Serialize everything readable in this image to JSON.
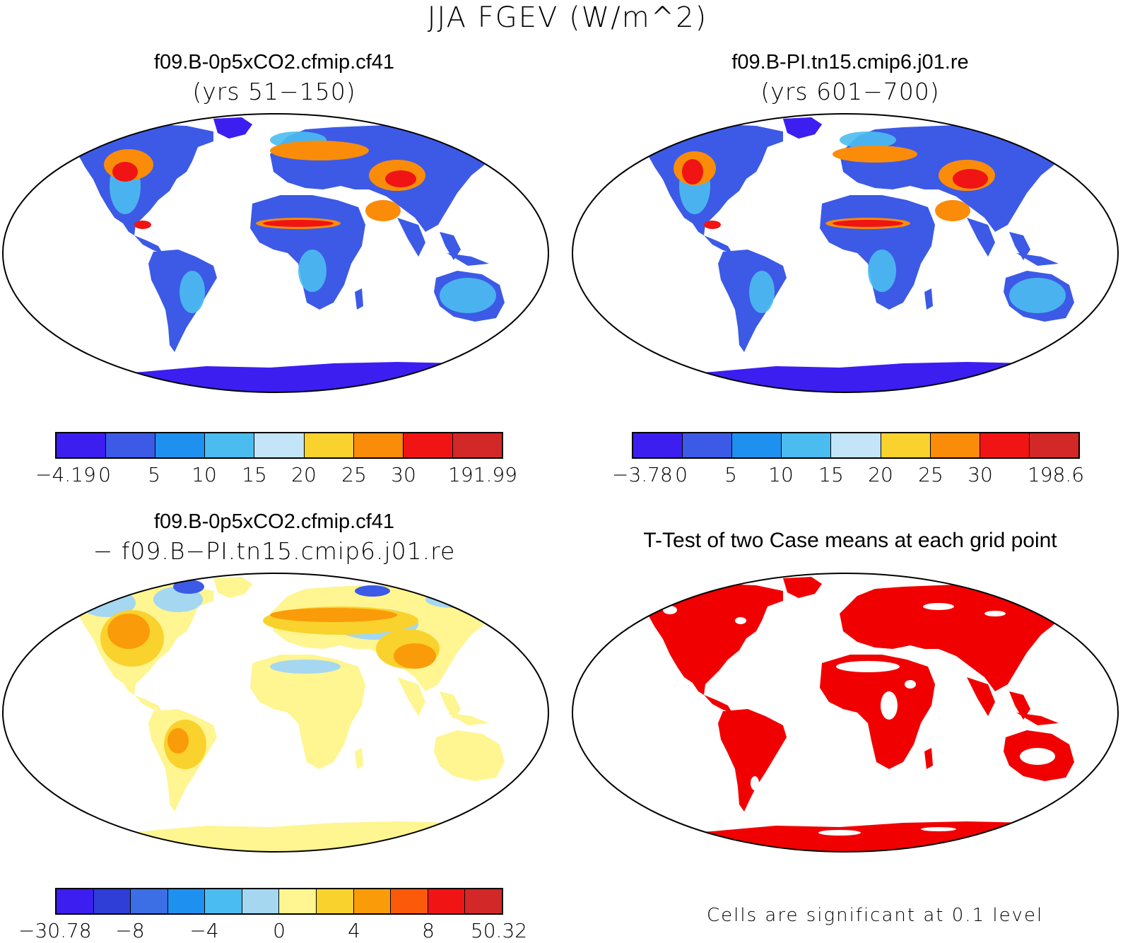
{
  "title": "JJA FGEV (W/m^2)",
  "panels": {
    "top_left": {
      "title": "f09.B-0p5xCO2.cfmip.cf41",
      "subtitle": "(yrs 51−150)",
      "colorbar": {
        "colors": [
          "#3c1ef0",
          "#3c5ae6",
          "#1e91f0",
          "#4bbcf0",
          "#c3e5f7",
          "#fad22d",
          "#fa8c0a",
          "#f01414",
          "#d22828"
        ],
        "labels": [
          "−4.19",
          "0",
          "5",
          "10",
          "15",
          "20",
          "25",
          "30",
          "191.99"
        ]
      }
    },
    "top_right": {
      "title": "f09.B-PI.tn15.cmip6.j01.re",
      "subtitle": "(yrs 601−700)",
      "colorbar": {
        "colors": [
          "#3c1ef0",
          "#3c5ae6",
          "#1e91f0",
          "#4bbcf0",
          "#c3e5f7",
          "#fad22d",
          "#fa8c0a",
          "#f01414",
          "#d22828"
        ],
        "labels": [
          "−3.78",
          "0",
          "5",
          "10",
          "15",
          "20",
          "25",
          "30",
          "198.6"
        ]
      }
    },
    "bottom_left": {
      "title": "f09.B-0p5xCO2.cfmip.cf41",
      "subtitle": "− f09.B−PI.tn15.cmip6.j01.re",
      "colorbar": {
        "colors": [
          "#3c1ef0",
          "#2e3ed6",
          "#3c6ee6",
          "#1e91f0",
          "#4bbcf0",
          "#a5d7f0",
          "#fff591",
          "#fad22d",
          "#fa9b0a",
          "#fa5a0a",
          "#f01414",
          "#d22828"
        ],
        "labels": [
          "−30.78",
          "−8",
          "−4",
          "0",
          "4",
          "8",
          "50.32"
        ]
      }
    },
    "bottom_right": {
      "title": "T-Test of two Case means at each grid point",
      "note": "Cells are significant at 0.1 level",
      "signif_color": "#f00000"
    }
  }
}
